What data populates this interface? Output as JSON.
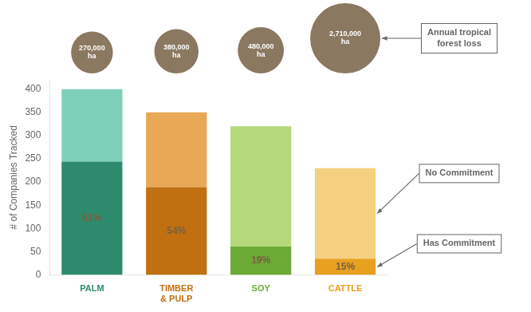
{
  "chart_data": {
    "type": "bar",
    "stacked": true,
    "grid": false,
    "ylabel": "# of Companies Tracked",
    "categories": [
      "PALM",
      "TIMBER\n& PULP",
      "SOY",
      "CATTLE"
    ],
    "series": [
      {
        "name": "Has Commitment",
        "colors": [
          "#2e8b6e",
          "#c07010",
          "#6aaa35",
          "#e8a020"
        ],
        "values": [
          244,
          189,
          61,
          35
        ],
        "segment_labels": [
          "61%",
          "54%",
          "19%",
          "15%"
        ],
        "label_color": "#7a6040"
      },
      {
        "name": "No Commitment",
        "colors": [
          "#7ecfba",
          "#e8a855",
          "#b5d97a",
          "#f5d080"
        ],
        "values": [
          156,
          161,
          259,
          195
        ]
      }
    ],
    "forest_loss": {
      "name": "Annual tropical\nforest loss",
      "values": [
        270000,
        380000,
        480000,
        2710000
      ],
      "labels": [
        "270,000\nha",
        "380,000\nha",
        "480,000\nha",
        "2,710,000\nha"
      ],
      "color": "#8b7860",
      "label_color": "#ffffff"
    },
    "ylim": [
      0,
      420
    ],
    "yticks": [
      0,
      50,
      100,
      150,
      200,
      250,
      300,
      350,
      400
    ]
  }
}
